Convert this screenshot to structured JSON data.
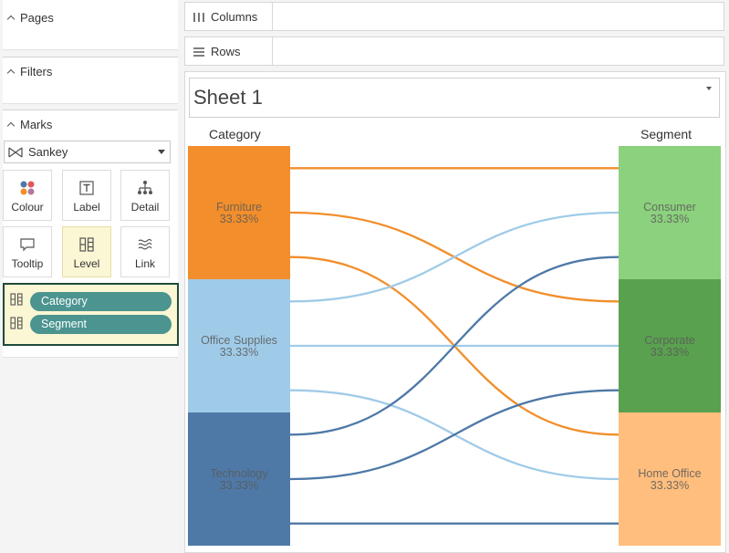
{
  "left_panel": {
    "pages": {
      "title": "Pages"
    },
    "filters": {
      "title": "Filters"
    },
    "marks": {
      "title": "Marks",
      "mark_type": "Sankey",
      "buttons": [
        {
          "label": "Colour",
          "icon": "colour-icon"
        },
        {
          "label": "Label",
          "icon": "label-icon"
        },
        {
          "label": "Detail",
          "icon": "detail-icon"
        },
        {
          "label": "Tooltip",
          "icon": "tooltip-icon"
        },
        {
          "label": "Level",
          "icon": "level-icon"
        },
        {
          "label": "Link",
          "icon": "link-icon"
        }
      ],
      "levels": [
        "Category",
        "Segment"
      ]
    }
  },
  "shelves": {
    "columns": "Columns",
    "rows": "Rows"
  },
  "sheet": {
    "title": "Sheet 1"
  },
  "chart_data": {
    "type": "sankey",
    "left_header": "Category",
    "right_header": "Segment",
    "left_nodes": [
      {
        "name": "Furniture",
        "pct": "33.33%",
        "color": "#f28e2b"
      },
      {
        "name": "Office Supplies",
        "pct": "33.33%",
        "color": "#a0cbe8"
      },
      {
        "name": "Technology",
        "pct": "33.33%",
        "color": "#4e79a7"
      }
    ],
    "right_nodes": [
      {
        "name": "Consumer",
        "pct": "33.33%",
        "color": "#8cd17d"
      },
      {
        "name": "Corporate",
        "pct": "33.33%",
        "color": "#59a14f"
      },
      {
        "name": "Home Office",
        "pct": "33.33%",
        "color": "#ffbe7d"
      }
    ],
    "links": [
      {
        "source": "Furniture",
        "target": "Consumer",
        "color": "#f28e2b"
      },
      {
        "source": "Furniture",
        "target": "Corporate",
        "color": "#f28e2b"
      },
      {
        "source": "Furniture",
        "target": "Home Office",
        "color": "#f28e2b"
      },
      {
        "source": "Office Supplies",
        "target": "Consumer",
        "color": "#a0cbe8"
      },
      {
        "source": "Office Supplies",
        "target": "Corporate",
        "color": "#a0cbe8"
      },
      {
        "source": "Office Supplies",
        "target": "Home Office",
        "color": "#a0cbe8"
      },
      {
        "source": "Technology",
        "target": "Consumer",
        "color": "#4e79a7"
      },
      {
        "source": "Technology",
        "target": "Corporate",
        "color": "#4e79a7"
      },
      {
        "source": "Technology",
        "target": "Home Office",
        "color": "#4e79a7"
      }
    ]
  }
}
